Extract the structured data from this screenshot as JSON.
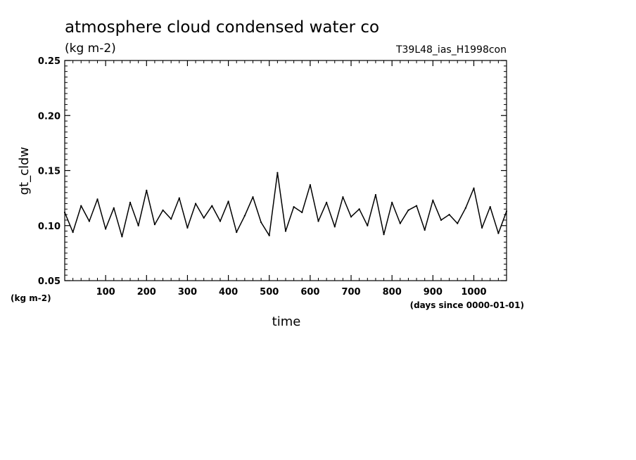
{
  "chart_data": {
    "type": "line",
    "title": "atmosphere cloud condensed water co",
    "units_label": "(kg m-2)",
    "run_label": "T39L48_ias_H1998con",
    "xlabel": "time",
    "x_units": "(days since 0000-01-01)",
    "ylabel": "gt_cldw",
    "y_units": "(kg m-2)",
    "xlim": [
      0,
      1080
    ],
    "ylim": [
      0.05,
      0.25
    ],
    "x_ticks": [
      100,
      200,
      300,
      400,
      500,
      600,
      700,
      800,
      900,
      1000
    ],
    "x_tick_labels": [
      "100",
      "200",
      "300",
      "400",
      "500",
      "600",
      "700",
      "800",
      "900",
      "1000"
    ],
    "y_ticks": [
      0.05,
      0.1,
      0.15,
      0.2,
      0.25
    ],
    "y_tick_labels": [
      "0.05",
      "0.10",
      "0.15",
      "0.20",
      "0.25"
    ],
    "series": [
      {
        "name": "gt_cldw",
        "x": [
          0,
          20,
          40,
          60,
          80,
          100,
          120,
          140,
          160,
          180,
          200,
          220,
          240,
          260,
          280,
          300,
          320,
          340,
          360,
          380,
          400,
          420,
          440,
          460,
          480,
          500,
          520,
          540,
          560,
          580,
          600,
          620,
          640,
          660,
          680,
          700,
          720,
          740,
          760,
          780,
          800,
          820,
          840,
          860,
          880,
          900,
          920,
          940,
          960,
          980,
          1000,
          1020,
          1040,
          1060,
          1080
        ],
        "values": [
          0.112,
          0.094,
          0.118,
          0.104,
          0.124,
          0.097,
          0.116,
          0.09,
          0.121,
          0.1,
          0.132,
          0.101,
          0.114,
          0.106,
          0.125,
          0.098,
          0.12,
          0.107,
          0.118,
          0.104,
          0.122,
          0.094,
          0.109,
          0.126,
          0.103,
          0.091,
          0.148,
          0.095,
          0.117,
          0.112,
          0.137,
          0.104,
          0.121,
          0.099,
          0.126,
          0.108,
          0.115,
          0.1,
          0.128,
          0.092,
          0.121,
          0.102,
          0.114,
          0.118,
          0.096,
          0.123,
          0.105,
          0.11,
          0.102,
          0.116,
          0.134,
          0.098,
          0.117,
          0.093,
          0.113
        ]
      }
    ]
  }
}
